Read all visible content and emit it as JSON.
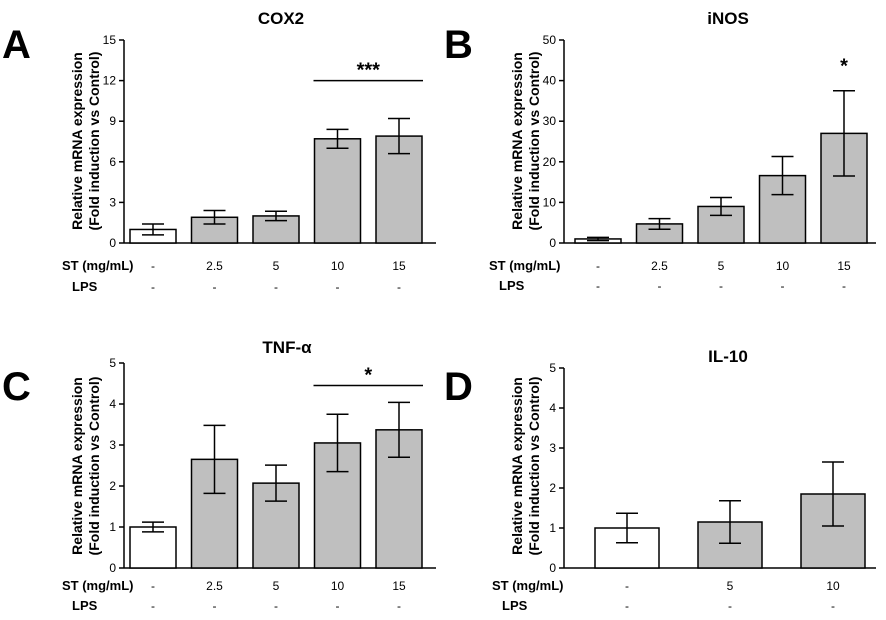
{
  "row_labels": {
    "st": "ST  (mg/mL)",
    "lps": "LPS"
  },
  "chart_data": [
    {
      "type": "bar",
      "panel": "A",
      "title": "COX2",
      "ylabel": [
        "Relative mRNA expression",
        "(Fold induction vs Control)"
      ],
      "yticks": [
        0,
        3,
        6,
        9,
        12,
        15
      ],
      "ylim": [
        0,
        15
      ],
      "categories": [
        "-",
        "2.5",
        "5",
        "10",
        "15"
      ],
      "lps": [
        "-",
        "-",
        "-",
        "-",
        "-"
      ],
      "values": [
        1.0,
        1.9,
        2.0,
        7.7,
        7.9
      ],
      "errors": [
        0.4,
        0.5,
        0.35,
        0.7,
        1.3
      ],
      "fill": [
        "#ffffff",
        "#bfbfbf",
        "#bfbfbf",
        "#bfbfbf",
        "#bfbfbf"
      ],
      "significance": {
        "label": "***",
        "from": 3,
        "to": 4,
        "y": 12.0
      }
    },
    {
      "type": "bar",
      "panel": "B",
      "title": "iNOS",
      "ylabel": [
        "Relative mRNA expression",
        "(Fold induction vs Control)"
      ],
      "yticks": [
        0,
        10,
        20,
        30,
        40,
        50
      ],
      "ylim": [
        0,
        50
      ],
      "categories": [
        "-",
        "2.5",
        "5",
        "10",
        "15"
      ],
      "lps": [
        "-",
        "-",
        "-",
        "-",
        "-"
      ],
      "values": [
        1.0,
        4.7,
        9.0,
        16.6,
        27.0
      ],
      "errors": [
        0.4,
        1.3,
        2.2,
        4.7,
        10.5
      ],
      "fill": [
        "#ffffff",
        "#bfbfbf",
        "#bfbfbf",
        "#bfbfbf",
        "#bfbfbf"
      ],
      "significance": {
        "label": "*",
        "from": 4,
        "to": 4,
        "y": 43.0
      }
    },
    {
      "type": "bar",
      "panel": "C",
      "title": "TNF-α",
      "ylabel": [
        "Relative mRNA expression",
        "(Fold induction vs Control)"
      ],
      "yticks": [
        0,
        1,
        2,
        3,
        4,
        5
      ],
      "ylim": [
        0,
        5
      ],
      "categories": [
        "-",
        "2.5",
        "5",
        "10",
        "15"
      ],
      "lps": [
        "-",
        "-",
        "-",
        "-",
        "-"
      ],
      "values": [
        1.0,
        2.65,
        2.07,
        3.05,
        3.37
      ],
      "errors": [
        0.12,
        0.83,
        0.44,
        0.7,
        0.67
      ],
      "fill": [
        "#ffffff",
        "#bfbfbf",
        "#bfbfbf",
        "#bfbfbf",
        "#bfbfbf"
      ],
      "significance": {
        "label": "*",
        "from": 3,
        "to": 4,
        "y": 4.45
      }
    },
    {
      "type": "bar",
      "panel": "D",
      "title": "IL-10",
      "ylabel": [
        "Relative mRNA expression",
        "(Fold induction vs Control)"
      ],
      "yticks": [
        0,
        1,
        2,
        3,
        4,
        5
      ],
      "ylim": [
        0,
        5
      ],
      "categories": [
        "-",
        "5",
        "10"
      ],
      "lps": [
        "-",
        "-",
        "-"
      ],
      "values": [
        1.0,
        1.15,
        1.85
      ],
      "errors": [
        0.37,
        0.53,
        0.8
      ],
      "fill": [
        "#ffffff",
        "#bfbfbf",
        "#bfbfbf"
      ],
      "significance": null
    }
  ]
}
